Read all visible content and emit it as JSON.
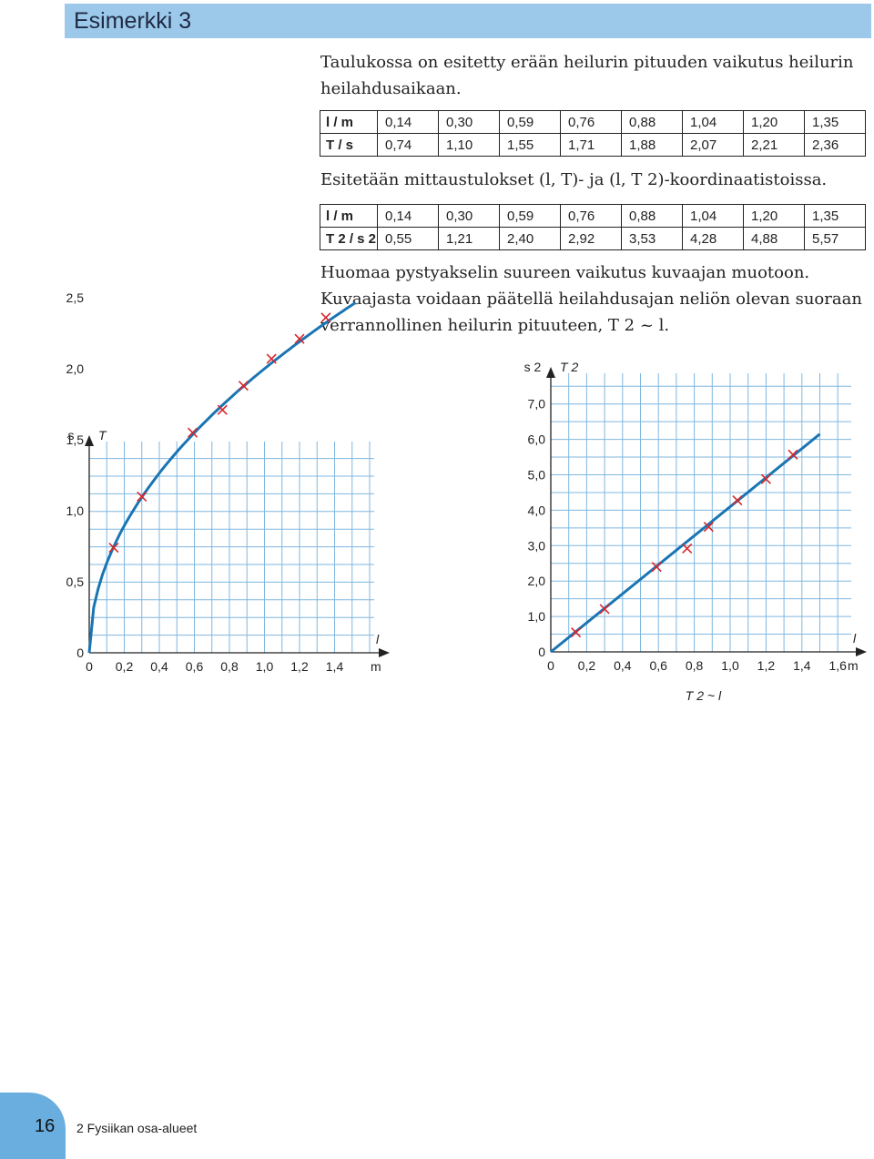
{
  "header": {
    "title": "Esimerkki 3"
  },
  "intro": "Taulukossa on esitetty erään heilurin pituuden vaikutus heilurin heilahdusaikaan.",
  "table1": {
    "row1_label": "l / m",
    "row2_label": "T / s",
    "l": [
      "0,14",
      "0,30",
      "0,59",
      "0,76",
      "0,88",
      "1,04",
      "1,20",
      "1,35"
    ],
    "T": [
      "0,74",
      "1,10",
      "1,55",
      "1,71",
      "1,88",
      "2,07",
      "2,21",
      "2,36"
    ]
  },
  "middle_text": "Esitetään mittaustulokset (l, T)- ja (l, T 2)-koordinaatistoissa.",
  "table2": {
    "row1_label": "l / m",
    "row2_label": "T 2 / s 2",
    "l": [
      "0,14",
      "0,30",
      "0,59",
      "0,76",
      "0,88",
      "1,04",
      "1,20",
      "1,35"
    ],
    "T2": [
      "0,55",
      "1,21",
      "2,40",
      "2,92",
      "3,53",
      "4,28",
      "4,88",
      "5,57"
    ]
  },
  "conclusion": "Huomaa pystyakselin suureen vaikutus kuvaajan muotoon. Kuvaajasta voidaan päätellä heilahdusajan neliön olevan suoraan verrannollinen heilurin pituuteen, T 2 ~ l.",
  "chart_data": [
    {
      "type": "scatter",
      "fit": "curve",
      "x": [
        0.14,
        0.3,
        0.59,
        0.76,
        0.88,
        1.04,
        1.2,
        1.35
      ],
      "y": [
        0.74,
        1.1,
        1.55,
        1.71,
        1.88,
        2.07,
        2.21,
        2.36
      ],
      "xlabel": "l",
      "xunit": "m",
      "ylabel": "T",
      "yunit": "s",
      "xlim": [
        0,
        1.4
      ],
      "ylim": [
        0,
        2.5
      ],
      "x_ticks": [
        "0",
        "0,2",
        "0,4",
        "0,6",
        "0,8",
        "1,0",
        "1,2",
        "1,4"
      ],
      "y_ticks": [
        "0",
        "0,5",
        "1,0",
        "1,5",
        "2,0",
        "2,5"
      ],
      "grid": true,
      "marker_color": "#d9262b",
      "line_color": "#1a75b3"
    },
    {
      "type": "scatter",
      "fit": "line",
      "x": [
        0.14,
        0.3,
        0.59,
        0.76,
        0.88,
        1.04,
        1.2,
        1.35
      ],
      "y": [
        0.55,
        1.21,
        2.4,
        2.92,
        3.53,
        4.28,
        4.88,
        5.57
      ],
      "xlabel": "l",
      "xunit": "m",
      "ylabel": "T 2",
      "yunit": "s 2",
      "xlim": [
        0,
        1.6
      ],
      "ylim": [
        0,
        7.0
      ],
      "x_ticks": [
        "0",
        "0,2",
        "0,4",
        "0,6",
        "0,8",
        "1,0",
        "1,2",
        "1,4",
        "1,6"
      ],
      "y_ticks": [
        "0",
        "1,0",
        "2,0",
        "3,0",
        "4,0",
        "5,0",
        "6,0",
        "7,0"
      ],
      "caption": "T 2 ~ l",
      "grid": true,
      "marker_color": "#d9262b",
      "line_color": "#1a75b3"
    }
  ],
  "footer": {
    "page_number": "16",
    "chapter": "2  Fysiikan osa-alueet"
  }
}
